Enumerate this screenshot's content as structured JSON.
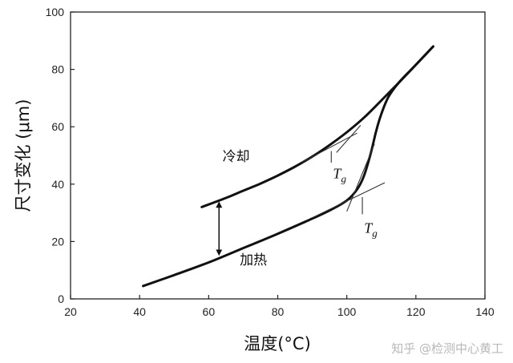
{
  "chart_data": {
    "type": "line",
    "xlabel": "温度(°C)",
    "ylabel": "尺寸变化 (μm)",
    "xlim": [
      20,
      140
    ],
    "ylim": [
      0,
      100
    ],
    "xticks": [
      20,
      40,
      60,
      80,
      100,
      120,
      140
    ],
    "yticks": [
      0,
      20,
      40,
      60,
      80,
      100
    ],
    "grid": false,
    "series": [
      {
        "name": "冷却",
        "x": [
          58,
          65,
          70,
          75,
          80,
          85,
          90,
          95,
          100,
          105,
          110,
          115,
          120,
          125
        ],
        "y": [
          32,
          35.2,
          37.7,
          40.2,
          43,
          46.1,
          49.6,
          53.6,
          58.1,
          63.2,
          69.2,
          75.3,
          81.6,
          88
        ]
      },
      {
        "name": "加热",
        "x": [
          41,
          50,
          60,
          70,
          80,
          90,
          95,
          100,
          103,
          105,
          107,
          108.5,
          110,
          112,
          115,
          120,
          125
        ],
        "y": [
          4.5,
          8.3,
          12.7,
          17.7,
          22.7,
          28,
          30.8,
          34.3,
          38.2,
          43,
          51,
          58.5,
          64.5,
          70.3,
          75.3,
          81.6,
          88
        ]
      }
    ],
    "annotations": [
      {
        "text": "冷却",
        "x": 64,
        "y": 48
      },
      {
        "text": "加热",
        "x": 69,
        "y": 12
      },
      {
        "symbol": "T",
        "subscript": "g",
        "x": 96,
        "y": 42
      },
      {
        "symbol": "T",
        "subscript": "g",
        "x": 105,
        "y": 23
      }
    ],
    "tangent_lines": [
      {
        "x": [
          87,
          103
        ],
        "y": [
          47.6,
          57.8
        ]
      },
      {
        "x": [
          97,
          104
        ],
        "y": [
          51,
          60.5
        ]
      },
      {
        "x": [
          90,
          111
        ],
        "y": [
          28.3,
          40.5
        ]
      },
      {
        "x": [
          100,
          108
        ],
        "y": [
          30.5,
          54
        ]
      }
    ],
    "arrow": {
      "x": 63,
      "y_from": 15,
      "y_to": 34
    }
  },
  "watermark": "知乎 @检测中心黄工"
}
